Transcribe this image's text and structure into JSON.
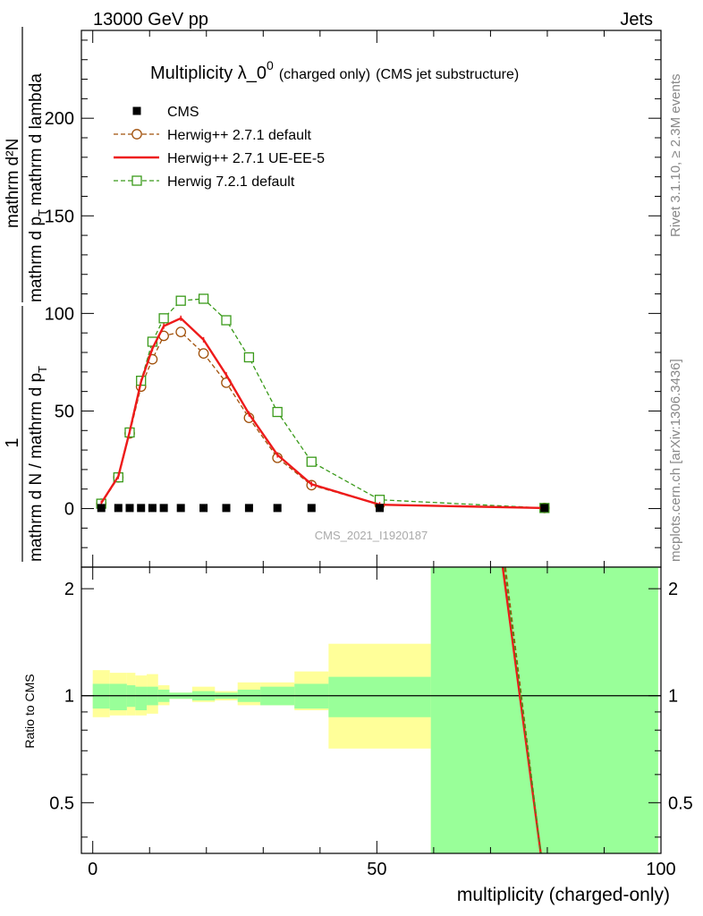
{
  "header": {
    "left": "13000 GeV pp",
    "right": "Jets"
  },
  "side_labels": {
    "rivet": "Rivet 3.1.10, ≥ 2.3M events",
    "mcplots": "mcplots.cern.ch [arXiv:1306.3436]"
  },
  "chart_data": [
    {
      "type": "line",
      "title": "Multiplicity λ_0^0",
      "title_main": "Multiplicity λ_0",
      "title_sup": "0",
      "title_suffix_1": "(charged only)",
      "title_suffix_2": "(CMS jet substructure)",
      "ylabel_left": "1",
      "ylabel_left_denominator": "mathrm d N / mathrm d p",
      "ylabel_left_sub": "T",
      "ylabel_right": "mathrm d²N",
      "ylabel_right_denominator": "mathrm d p",
      "ylabel_right_sub": "T",
      "ylabel_right_suffix": "mathrm d lambda",
      "watermark": "CMS_2021_I1920187",
      "xlim": [
        -2,
        100
      ],
      "ylim": [
        -30,
        245
      ],
      "yticks": [
        0,
        50,
        100,
        150,
        200
      ],
      "legend_position": "top-left",
      "series": [
        {
          "name": "CMS",
          "style": "markers",
          "color": "#000000",
          "marker": "filled-square",
          "x": [
            1.5,
            4.5,
            6.5,
            8.5,
            10.5,
            12.5,
            15.5,
            19.5,
            23.5,
            27.5,
            32.5,
            38.5,
            50.5,
            79.5
          ],
          "y": [
            0.3,
            0.3,
            0.3,
            0.3,
            0.3,
            0.3,
            0.3,
            0.3,
            0.3,
            0.3,
            0.3,
            0.3,
            0.3,
            0.3
          ]
        },
        {
          "name": "Herwig++ 2.7.1 default",
          "style": "dashed",
          "color": "#a0500a",
          "marker": "open-circle",
          "x": [
            1.5,
            4.5,
            6.5,
            8.5,
            10.5,
            12.5,
            15.5,
            19.5,
            23.5,
            27.5,
            32.5,
            38.5,
            50.5,
            79.5
          ],
          "y": [
            2.5,
            16,
            38.5,
            62.5,
            76.5,
            88.5,
            90.5,
            79.5,
            64.5,
            46.5,
            26,
            12,
            2,
            0.3
          ]
        },
        {
          "name": "Herwig++ 2.7.1 UE-EE-5",
          "style": "solid",
          "color": "#ee1a1a",
          "marker": "none",
          "x": [
            1.5,
            4.5,
            6.5,
            8.5,
            10.5,
            12.5,
            15.5,
            19.5,
            23.5,
            27.5,
            32.5,
            38.5,
            50.5,
            79.5
          ],
          "y": [
            2.8,
            16.5,
            39.5,
            65,
            82,
            93.5,
            97.5,
            86.5,
            68.5,
            48.5,
            27.5,
            12.5,
            2,
            0.3
          ]
        },
        {
          "name": "Herwig 7.2.1 default",
          "style": "dashed",
          "color": "#3a9a1a",
          "marker": "open-square",
          "x": [
            1.5,
            4.5,
            6.5,
            8.5,
            10.5,
            12.5,
            15.5,
            19.5,
            23.5,
            27.5,
            32.5,
            38.5,
            50.5,
            79.5
          ],
          "y": [
            2.5,
            16,
            39,
            65.5,
            85.5,
            97.5,
            106.5,
            107.5,
            96.5,
            77.5,
            49.5,
            24,
            4.5,
            0.3
          ]
        }
      ]
    },
    {
      "type": "line",
      "ylabel": "Ratio to CMS",
      "xlabel": "multiplicity (charged-only)",
      "xlim": [
        -2,
        100
      ],
      "ylim": [
        0.36,
        2.3
      ],
      "yscale": "log",
      "yticks": [
        0.5,
        1,
        2
      ],
      "xticks": [
        0,
        50,
        100
      ],
      "reference_line": 1,
      "bands": {
        "bins": [
          [
            0,
            3
          ],
          [
            3,
            6
          ],
          [
            6,
            7.5
          ],
          [
            7.5,
            9.5
          ],
          [
            9.5,
            11.5
          ],
          [
            11.5,
            13.5
          ],
          [
            13.5,
            17.5
          ],
          [
            17.5,
            21.5
          ],
          [
            21.5,
            25.5
          ],
          [
            25.5,
            29.5
          ],
          [
            29.5,
            35.5
          ],
          [
            35.5,
            41.5
          ],
          [
            41.5,
            59.5
          ],
          [
            59.5,
            99.5
          ]
        ],
        "inner_color": "#99ff99",
        "outer_color": "#ffff99",
        "inner_lo": [
          0.92,
          0.91,
          0.93,
          0.91,
          0.94,
          0.96,
          0.98,
          0.97,
          0.98,
          0.96,
          0.94,
          0.92,
          0.87,
          0.3
        ],
        "inner_hi": [
          1.08,
          1.08,
          1.07,
          1.06,
          1.06,
          1.04,
          1.02,
          1.03,
          1.02,
          1.04,
          1.06,
          1.08,
          1.13,
          2.5
        ],
        "outer_lo": [
          0.87,
          0.88,
          0.88,
          0.88,
          0.89,
          0.94,
          0.98,
          0.96,
          0.97,
          0.94,
          0.94,
          0.91,
          0.71,
          0.3
        ],
        "outer_hi": [
          1.18,
          1.16,
          1.16,
          1.14,
          1.15,
          1.07,
          1.02,
          1.06,
          1.03,
          1.09,
          1.09,
          1.17,
          1.4,
          2.5
        ]
      },
      "series": [
        {
          "name": "Herwig++ 2.7.1 default",
          "color": "#a0500a",
          "style": "dashed",
          "x": [
            72.5,
            79.5
          ],
          "y": [
            2.4,
            0.3
          ]
        },
        {
          "name": "Herwig++ 2.7.1 UE-EE-5",
          "color": "#ee1a1a",
          "style": "solid",
          "x": [
            72,
            79.5
          ],
          "y": [
            2.4,
            0.3
          ]
        },
        {
          "name": "Herwig 7.2.1 default",
          "color": "#3a9a1a",
          "style": "dashed",
          "x": [
            72.3,
            79.5
          ],
          "y": [
            2.4,
            0.3
          ]
        }
      ]
    }
  ]
}
